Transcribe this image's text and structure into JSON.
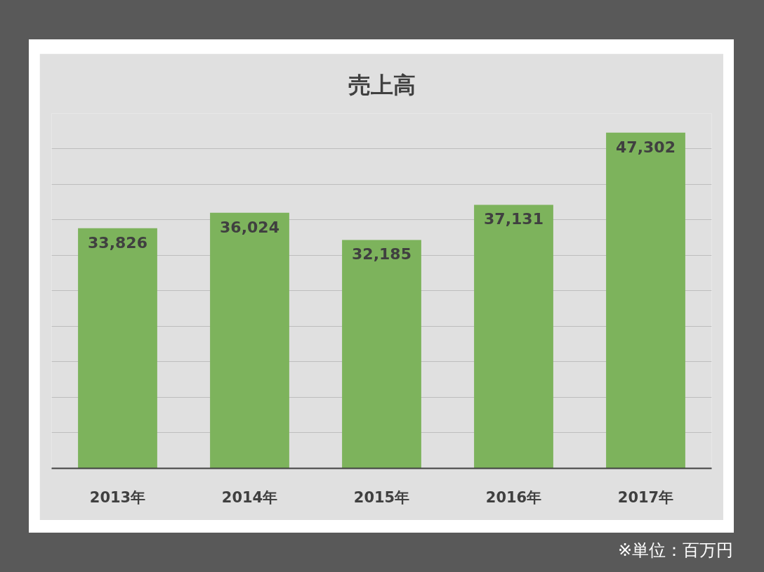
{
  "chart_data": {
    "type": "bar",
    "title": "売上高",
    "categories": [
      "2013年",
      "2014年",
      "2015年",
      "2016年",
      "2017年"
    ],
    "values": [
      33826,
      36024,
      32185,
      37131,
      47302
    ],
    "color": "#7db35c",
    "value_labels": [
      "33,826",
      "36,024",
      "32,185",
      "37,131",
      "47,302"
    ],
    "grid": "y",
    "tick_labels": "x",
    "annotations": [
      "※単位：百万円"
    ]
  }
}
